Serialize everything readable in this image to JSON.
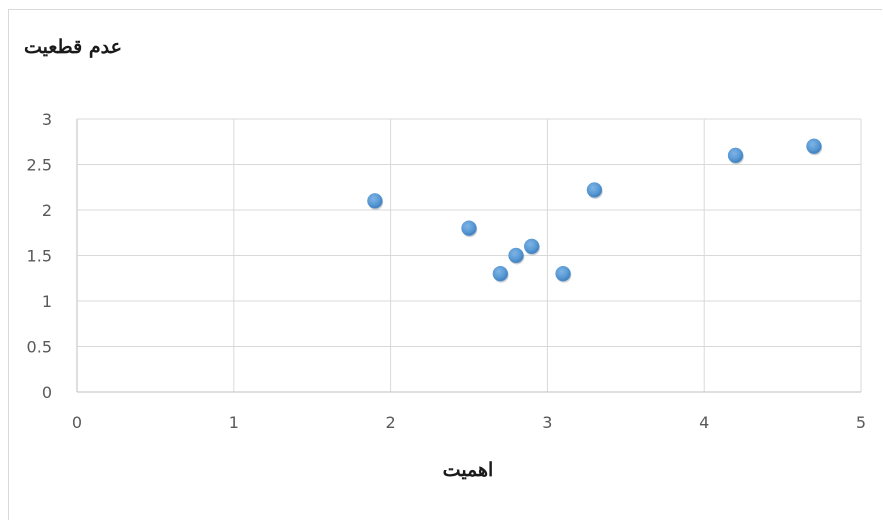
{
  "chart_data": {
    "type": "scatter",
    "ylabel": "عدم قطعیت",
    "xlabel": "اهمیت",
    "xlim": [
      0,
      5
    ],
    "ylim": [
      0,
      3
    ],
    "x_ticks": [
      "0",
      "1",
      "2",
      "3",
      "4",
      "5"
    ],
    "y_ticks": [
      "0",
      "0.5",
      "1",
      "1.5",
      "2",
      "2.5",
      "3"
    ],
    "grid": true,
    "legend": "none",
    "marker_color": "#5b9bd5",
    "series": [
      {
        "points": [
          {
            "x": 1.9,
            "y": 2.1
          },
          {
            "x": 2.5,
            "y": 1.8
          },
          {
            "x": 2.7,
            "y": 1.3
          },
          {
            "x": 2.8,
            "y": 1.5
          },
          {
            "x": 2.9,
            "y": 1.6
          },
          {
            "x": 3.1,
            "y": 1.3
          },
          {
            "x": 3.3,
            "y": 2.22
          },
          {
            "x": 4.2,
            "y": 2.6
          },
          {
            "x": 4.7,
            "y": 2.7
          }
        ]
      }
    ]
  }
}
